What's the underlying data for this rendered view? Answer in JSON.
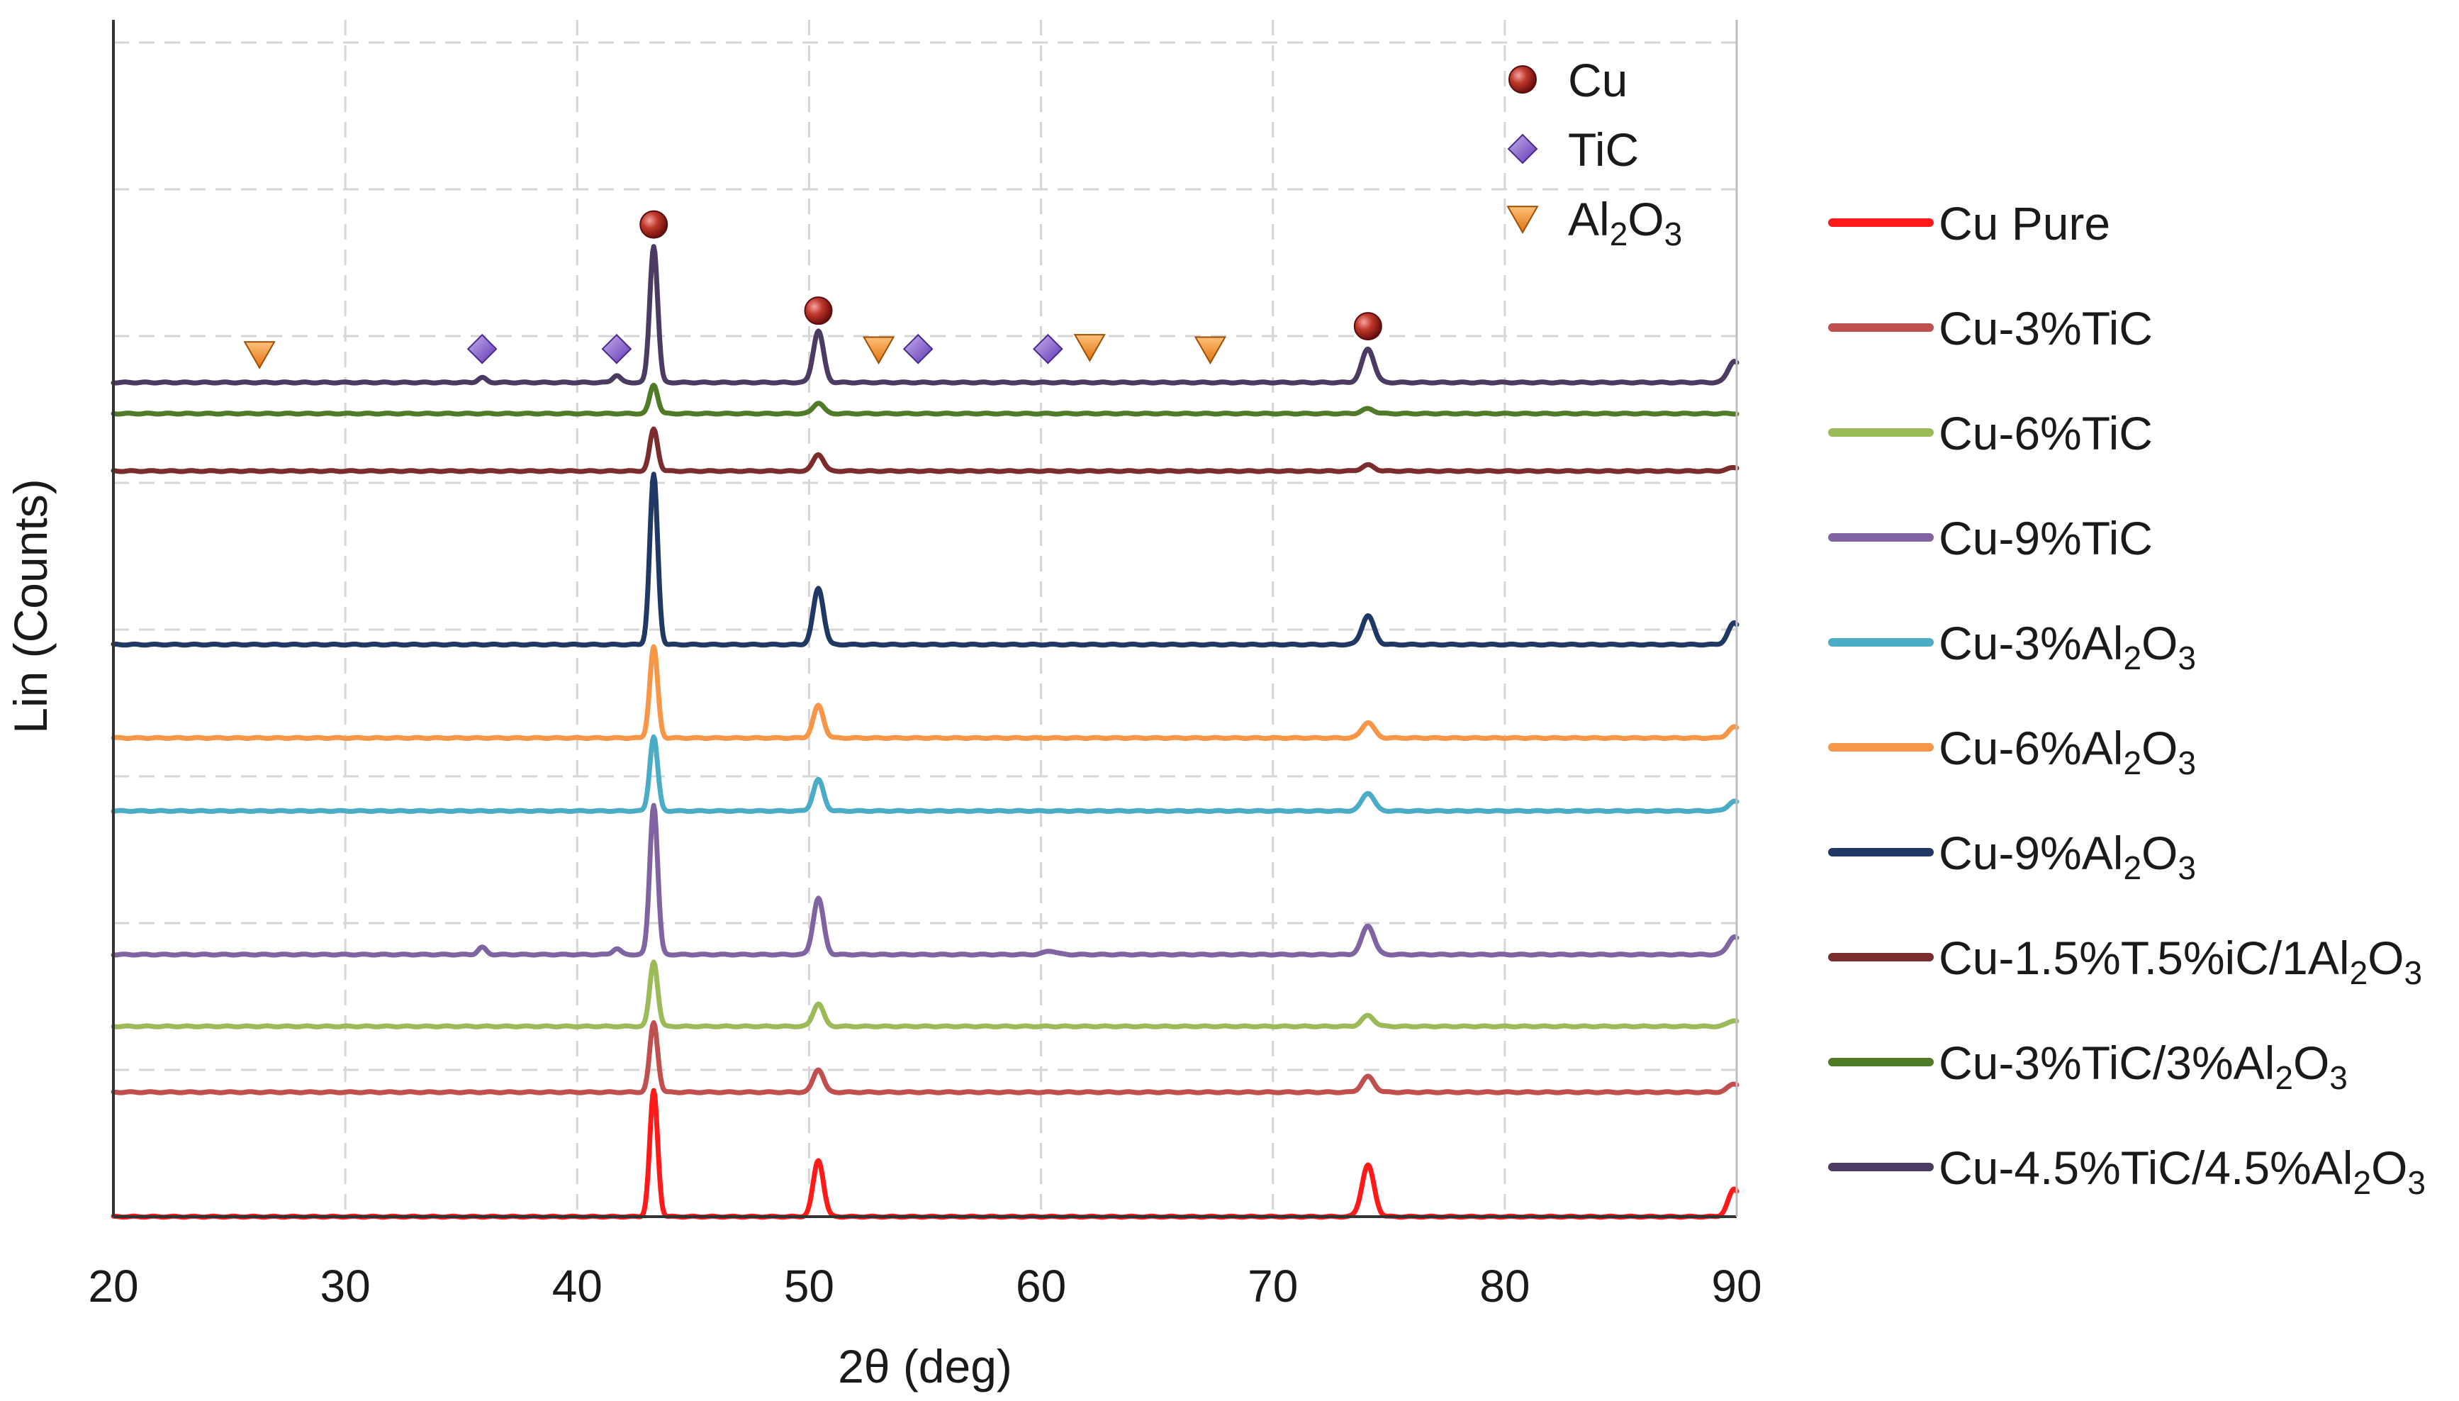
{
  "chart_data": {
    "type": "line",
    "title": "",
    "xlabel": "2θ (deg)",
    "ylabel": "Lin (Counts)",
    "xlim": [
      20,
      90
    ],
    "ylim": [
      0,
      100
    ],
    "x_ticks": [
      "20",
      "30",
      "40",
      "50",
      "60",
      "70",
      "80",
      "90"
    ],
    "grid": true,
    "legend_position": "right",
    "y_units": "relative counts (offset stacked)",
    "series": [
      {
        "name": "Cu Pure",
        "label_main": "Cu Pure",
        "label_sub": "",
        "label_tail": "",
        "color": "#ff1a1a",
        "baseline": 0,
        "peaks": [
          [
            43.3,
            10.5
          ],
          [
            50.4,
            4.7
          ],
          [
            74.1,
            4.3
          ],
          [
            89.9,
            2.3
          ]
        ]
      },
      {
        "name": "Cu-3%TiC",
        "label_main": "Cu-3%TiC",
        "label_sub": "",
        "label_tail": "",
        "color": "#c0504d",
        "baseline": 10.4,
        "peaks": [
          [
            43.3,
            5.8
          ],
          [
            50.4,
            1.9
          ],
          [
            74.1,
            1.3
          ],
          [
            89.9,
            0.7
          ]
        ]
      },
      {
        "name": "Cu-6%TiC",
        "label_main": "Cu-6%TiC",
        "label_sub": "",
        "label_tail": "",
        "color": "#9bbb59",
        "baseline": 15.9,
        "peaks": [
          [
            43.3,
            5.4
          ],
          [
            50.4,
            1.9
          ],
          [
            74.1,
            0.9
          ],
          [
            89.9,
            0.5
          ]
        ]
      },
      {
        "name": "Cu-9%TiC",
        "label_main": "Cu-9%TiC",
        "label_sub": "",
        "label_tail": "",
        "color": "#8064a2",
        "baseline": 21.9,
        "peaks": [
          [
            35.9,
            0.6
          ],
          [
            41.7,
            0.5
          ],
          [
            43.3,
            12.5
          ],
          [
            50.4,
            4.7
          ],
          [
            60.4,
            0.3
          ],
          [
            74.1,
            2.4
          ],
          [
            89.9,
            1.5
          ]
        ]
      },
      {
        "name": "Cu-3%Al2O3",
        "label_main": "Cu-3%Al",
        "label_sub": "2",
        "label_tail": "O3",
        "color": "#4bacc6",
        "baseline": 33.9,
        "peaks": [
          [
            43.3,
            6.2
          ],
          [
            50.4,
            2.6
          ],
          [
            74.1,
            1.5
          ],
          [
            89.9,
            0.8
          ]
        ]
      },
      {
        "name": "Cu-6%Al2O3",
        "label_main": "Cu-6%Al",
        "label_sub": "2",
        "label_tail": "O3",
        "color": "#f79646",
        "baseline": 40.0,
        "peaks": [
          [
            43.3,
            7.6
          ],
          [
            50.4,
            2.7
          ],
          [
            74.1,
            1.3
          ],
          [
            89.9,
            0.9
          ]
        ]
      },
      {
        "name": "Cu-9%Al2O3",
        "label_main": "Cu-9%Al",
        "label_sub": "2",
        "label_tail": "O3",
        "color": "#1f3864",
        "baseline": 47.8,
        "peaks": [
          [
            43.3,
            14.2
          ],
          [
            50.4,
            4.7
          ],
          [
            74.1,
            2.4
          ],
          [
            89.9,
            1.8
          ]
        ]
      },
      {
        "name": "Cu-1.5%T.5%iC/1Al2O3",
        "label_main": "Cu-1.5%T.5%iC/1Al",
        "label_sub": "2",
        "label_tail": "O3",
        "color": "#7b2c2c",
        "baseline": 62.3,
        "peaks": [
          [
            43.3,
            3.5
          ],
          [
            50.4,
            1.4
          ],
          [
            74.1,
            0.5
          ],
          [
            89.9,
            0.3
          ]
        ]
      },
      {
        "name": "Cu-3%TiC/3%Al2O3",
        "label_main": "Cu-3%TiC/3%Al",
        "label_sub": "2",
        "label_tail": "O3",
        "color": "#4f7a28",
        "baseline": 67.1,
        "peaks": [
          [
            43.3,
            2.4
          ],
          [
            50.4,
            0.9
          ],
          [
            74.1,
            0.4
          ]
        ]
      },
      {
        "name": "Cu-4.5%TiC/4.5%Al2O3",
        "label_main": "Cu-4.5%TiC/4.5%Al",
        "label_sub": "2",
        "label_tail": "O3",
        "color": "#4b3b63",
        "baseline": 69.7,
        "peaks": [
          [
            35.9,
            0.4
          ],
          [
            41.7,
            0.6
          ],
          [
            43.3,
            11.4
          ],
          [
            50.4,
            4.3
          ],
          [
            74.1,
            2.8
          ],
          [
            89.9,
            1.8
          ]
        ]
      }
    ],
    "phase_markers": [
      {
        "phase": "Cu",
        "label_main": "Cu",
        "label_sub": "",
        "symbol": "sphere",
        "color": "#b22222",
        "positions": [
          [
            43.3,
            82.9
          ],
          [
            50.4,
            75.7
          ],
          [
            74.1,
            74.4
          ]
        ]
      },
      {
        "phase": "TiC",
        "label_main": "TiC",
        "label_sub": "",
        "symbol": "diamond",
        "color": "#7e57c2",
        "positions": [
          [
            35.9,
            72.5
          ],
          [
            41.7,
            72.5
          ],
          [
            54.7,
            72.5
          ],
          [
            60.3,
            72.5
          ]
        ]
      },
      {
        "phase": "Al2O3",
        "label_main": "Al",
        "label_sub": "2",
        "label_tail": "O3",
        "symbol": "triangle-down",
        "color": "#f28c28",
        "positions": [
          [
            26.3,
            72.1
          ],
          [
            53.0,
            72.5
          ],
          [
            62.1,
            72.7
          ],
          [
            67.3,
            72.5
          ]
        ]
      }
    ]
  }
}
